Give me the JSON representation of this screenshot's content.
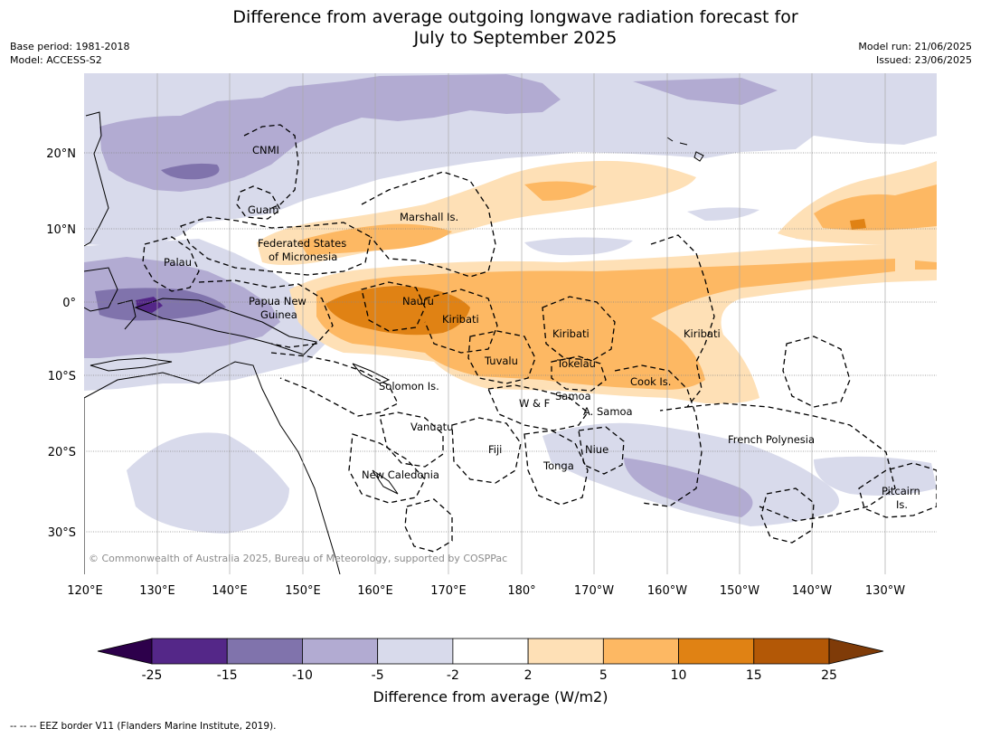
{
  "title_line1": "Difference from average outgoing longwave radiation forecast for",
  "title_line2": "July to September 2025",
  "meta_left": [
    "Base period: 1981-2018",
    "Model: ACCESS-S2"
  ],
  "meta_right": [
    "Model run: 21/06/2025",
    "Issued: 23/06/2025"
  ],
  "axes": {
    "lon_labels": [
      "120°E",
      "130°E",
      "140°E",
      "150°E",
      "160°E",
      "170°E",
      "180°",
      "170°W",
      "160°W",
      "150°W",
      "140°W",
      "130°W"
    ],
    "lat_labels": [
      "20°N",
      "10°N",
      "0°",
      "10°S",
      "20°S",
      "30°S"
    ]
  },
  "regions": [
    {
      "name": "CNMI"
    },
    {
      "name": "Guam"
    },
    {
      "name": "Marshall Is."
    },
    {
      "name": "Federated States"
    },
    {
      "name": "of Micronesia"
    },
    {
      "name": "Palau"
    },
    {
      "name": "Papua New"
    },
    {
      "name": "Guinea"
    },
    {
      "name": "Nauru"
    },
    {
      "name": "Kiribati"
    },
    {
      "name": "Kiribati"
    },
    {
      "name": "Kiribati"
    },
    {
      "name": "Tuvalu"
    },
    {
      "name": "Tokelau"
    },
    {
      "name": "Cook Is."
    },
    {
      "name": "Solomon Is."
    },
    {
      "name": "W & F"
    },
    {
      "name": "Samoa"
    },
    {
      "name": "A. Samoa"
    },
    {
      "name": "Vanuatu"
    },
    {
      "name": "Fiji"
    },
    {
      "name": "Niue"
    },
    {
      "name": "Tonga"
    },
    {
      "name": "New Caledonia"
    },
    {
      "name": "French Polynesia"
    },
    {
      "name": "Pitcairn"
    },
    {
      "name": "Is."
    }
  ],
  "copyright": "© Commonwealth of Australia 2025, Bureau of Meteorology, supported by COSPPac",
  "colorbar": {
    "title": "Difference from average (W/m2)",
    "ticks": [
      "-25",
      "-15",
      "-10",
      "-5",
      "-2",
      "2",
      "5",
      "10",
      "15",
      "25"
    ],
    "colors": [
      "#2d004b",
      "#542788",
      "#8073ac",
      "#b2abd2",
      "#d8daeb",
      "#ffffff",
      "#fee0b6",
      "#fdb863",
      "#e08214",
      "#b35806",
      "#7f3b08"
    ]
  },
  "footnote": "--  --  -- EEZ border V11 (Flanders Marine Institute, 2019)."
}
